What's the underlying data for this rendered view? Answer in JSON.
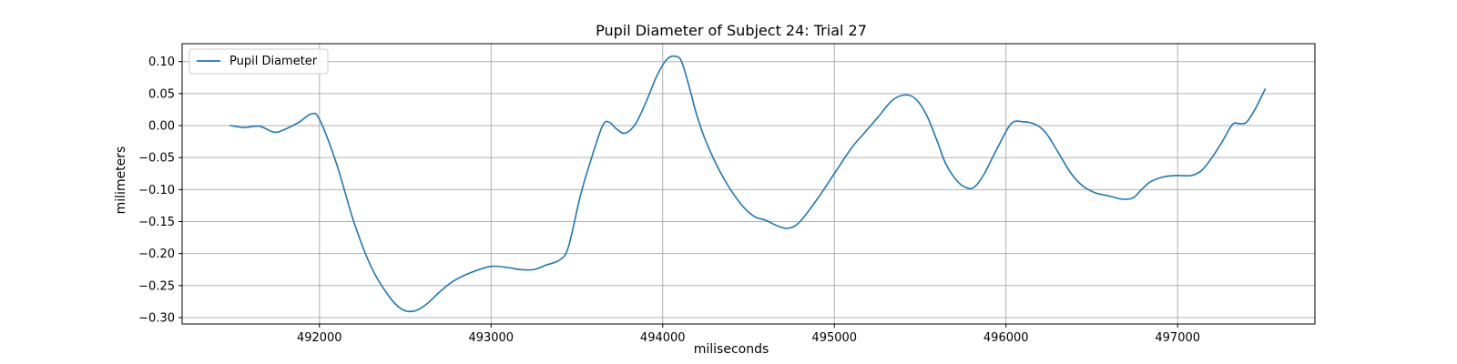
{
  "chart_data": {
    "type": "line",
    "title": "Pupil Diameter of Subject 24: Trial 27",
    "xlabel": "miliseconds",
    "ylabel": "milimeters",
    "xlim": [
      491200,
      497800
    ],
    "ylim": [
      -0.31,
      0.128
    ],
    "x_ticks": [
      492000,
      493000,
      494000,
      495000,
      496000,
      497000
    ],
    "x_tick_labels": [
      "492000",
      "493000",
      "494000",
      "495000",
      "496000",
      "497000"
    ],
    "y_ticks": [
      0.1,
      0.05,
      0.0,
      -0.05,
      -0.1,
      -0.15,
      -0.2,
      -0.25,
      -0.3
    ],
    "y_tick_labels": [
      "0.10",
      "0.05",
      "0.00",
      "−0.05",
      "−0.10",
      "−0.15",
      "−0.20",
      "−0.25",
      "−0.30"
    ],
    "grid": true,
    "legend_position": "top-left",
    "series": [
      {
        "name": "Pupil Diameter",
        "color": "#1f77b4",
        "x": [
          491480,
          491560,
          491650,
          491730,
          491780,
          491880,
          491950,
          492000,
          492100,
          492200,
          492300,
          492400,
          492480,
          492550,
          492620,
          492700,
          492780,
          492880,
          493000,
          493100,
          493170,
          493250,
          493320,
          493400,
          493450,
          493520,
          493580,
          493650,
          493690,
          493730,
          493780,
          493840,
          493900,
          493970,
          494030,
          494080,
          494110,
          494150,
          494200,
          494260,
          494340,
          494420,
          494480,
          494540,
          494600,
          494680,
          494740,
          494800,
          494900,
          495000,
          495100,
          495180,
          495260,
          495340,
          495420,
          495480,
          495540,
          495600,
          495650,
          495720,
          495780,
          495820,
          495870,
          495950,
          496030,
          496100,
          496160,
          496210,
          496250,
          496300,
          496380,
          496450,
          496520,
          496600,
          496680,
          496740,
          496790,
          496840,
          496920,
          497000,
          497080,
          497140,
          497200,
          497260,
          497320,
          497360,
          497400,
          497450,
          497510
        ],
        "values": [
          0.0,
          -0.003,
          -0.001,
          -0.01,
          -0.008,
          0.005,
          0.018,
          0.01,
          -0.06,
          -0.15,
          -0.22,
          -0.265,
          -0.287,
          -0.29,
          -0.28,
          -0.26,
          -0.243,
          -0.23,
          -0.22,
          -0.222,
          -0.225,
          -0.225,
          -0.218,
          -0.21,
          -0.19,
          -0.11,
          -0.055,
          0.0,
          0.005,
          -0.005,
          -0.012,
          0.002,
          0.035,
          0.08,
          0.105,
          0.108,
          0.1,
          0.065,
          0.015,
          -0.03,
          -0.075,
          -0.11,
          -0.13,
          -0.143,
          -0.148,
          -0.158,
          -0.16,
          -0.15,
          -0.115,
          -0.075,
          -0.035,
          -0.01,
          0.015,
          0.04,
          0.048,
          0.04,
          0.015,
          -0.025,
          -0.06,
          -0.088,
          -0.098,
          -0.095,
          -0.077,
          -0.035,
          0.003,
          0.006,
          0.003,
          -0.005,
          -0.018,
          -0.04,
          -0.075,
          -0.095,
          -0.105,
          -0.11,
          -0.115,
          -0.113,
          -0.1,
          -0.088,
          -0.08,
          -0.078,
          -0.078,
          -0.07,
          -0.05,
          -0.025,
          0.002,
          0.003,
          0.005,
          0.025,
          0.057
        ]
      }
    ]
  }
}
